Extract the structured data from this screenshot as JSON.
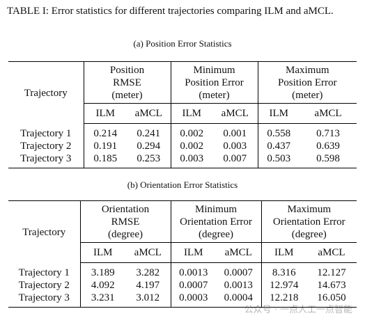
{
  "caption": "TABLE I: Error statistics for different trajectories comparing ILM and aMCL.",
  "tables": [
    {
      "subtitle": "(a) Position Error Statistics",
      "row_header": "Trajectory",
      "groups": [
        [
          "Position",
          "RMSE",
          "(meter)"
        ],
        [
          "Minimum",
          "Position Error",
          "(meter)"
        ],
        [
          "Maximum",
          "Position Error",
          "(meter)"
        ]
      ],
      "subheaders": [
        "ILM",
        "aMCL"
      ],
      "rows": [
        {
          "label": "Trajectory 1",
          "values": [
            "0.214",
            "0.241",
            "0.002",
            "0.001",
            "0.558",
            "0.713"
          ]
        },
        {
          "label": "Trajectory 2",
          "values": [
            "0.191",
            "0.294",
            "0.002",
            "0.003",
            "0.437",
            "0.639"
          ]
        },
        {
          "label": "Trajectory 3",
          "values": [
            "0.185",
            "0.253",
            "0.003",
            "0.007",
            "0.503",
            "0.598"
          ]
        }
      ]
    },
    {
      "subtitle": "(b) Orientation Error Statistics",
      "row_header": "Trajectory",
      "groups": [
        [
          "Orientation",
          "RMSE",
          "(degree)"
        ],
        [
          "Minimum",
          "Orientation Error",
          "(degree)"
        ],
        [
          "Maximum",
          "Orientation Error",
          "(degree)"
        ]
      ],
      "subheaders": [
        "ILM",
        "aMCL"
      ],
      "rows": [
        {
          "label": "Trajectory 1",
          "values": [
            "3.189",
            "3.282",
            "0.0013",
            "0.0007",
            "8.316",
            "12.127"
          ]
        },
        {
          "label": "Trajectory 2",
          "values": [
            "4.092",
            "4.197",
            "0.0007",
            "0.0013",
            "12.974",
            "14.673"
          ]
        },
        {
          "label": "Trajectory 3",
          "values": [
            "3.231",
            "3.012",
            "0.0003",
            "0.0004",
            "12.218",
            "16.050"
          ]
        }
      ]
    }
  ],
  "watermark": "公众号 · 一点人工一点智能"
}
